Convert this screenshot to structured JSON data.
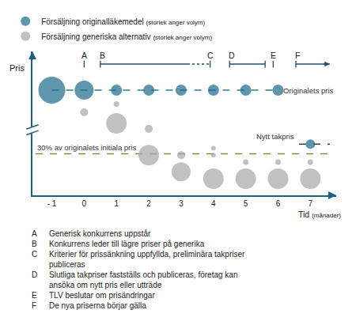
{
  "chart_data": {
    "type": "scatter",
    "marker": "bubble",
    "ylabel": "Pris",
    "xlabel": "Tid (månader)",
    "xlim": [
      -1.6,
      7.8
    ],
    "xticks": [
      {
        "value": -1,
        "label": "- 1"
      },
      0,
      1,
      2,
      3,
      4,
      5,
      6,
      7
    ],
    "ylim": [
      0,
      104
    ],
    "yticks": [],
    "tick_labels": "x",
    "grid": false,
    "legend": "top-left",
    "series": [
      {
        "name": "Försäljning originalläkemedel (storlek anger volym)",
        "color": "#1b6a87",
        "x": [
          -1,
          0,
          1,
          2,
          3,
          4,
          5,
          6,
          7
        ],
        "values": [
          76,
          76,
          76,
          76,
          76,
          76,
          76,
          76,
          37
        ],
        "sizes": [
          34,
          24,
          14,
          14,
          14,
          14,
          14,
          14,
          12
        ]
      },
      {
        "name": "Försäljning generiska alternativ (storlek anger volym)",
        "color": "#a6a6a6",
        "x": [
          0,
          1,
          1,
          2,
          2,
          3,
          3,
          4,
          4,
          4,
          5,
          5,
          6,
          6,
          7,
          7
        ],
        "values": [
          60,
          66,
          52,
          48,
          29,
          29,
          17,
          34,
          29,
          12,
          24,
          12,
          24,
          12,
          24,
          12
        ],
        "sizes": [
          10,
          7,
          26,
          10,
          26,
          10,
          24,
          6,
          6,
          26,
          7,
          26,
          7,
          26,
          7,
          26
        ]
      }
    ],
    "reference_lines": [
      {
        "label": "Originalets pris",
        "y": 76,
        "x": [
          -1,
          6
        ],
        "color": "#2a7c98",
        "line_style": "dashed"
      },
      {
        "label": "30% av originalets initiala pris",
        "y": 30,
        "x": [
          -1.5,
          7.7
        ],
        "color": "#8b8b2e",
        "line_style": "dashed"
      },
      {
        "label": "Nytt takpris",
        "y": 37,
        "x": [
          6.65,
          7.6
        ],
        "color": "#404040",
        "line_style": "dashed"
      }
    ],
    "timeline": [
      {
        "label": "A",
        "x": 0
      },
      {
        "label": "B",
        "start": 0.5,
        "end": 3.9,
        "dotted_from": 3.2
      },
      {
        "label": "C",
        "x": 3.9
      },
      {
        "label": "D",
        "start": 4.5,
        "end": 5.6
      },
      {
        "label": "E",
        "x": 5.85
      },
      {
        "label": "F",
        "start": 6.55,
        "end": 7.6,
        "line_style": "arrow"
      }
    ],
    "notes": [
      {
        "label": "A",
        "text": "Generisk konkurrens uppstår"
      },
      {
        "label": "B",
        "text": "Konkurrens leder till lägre priser på generika"
      },
      {
        "label": "C",
        "text": "Kriterier för prissänkning uppfyllda, preliminära takpriser publiceras"
      },
      {
        "label": "D",
        "text": "Slutliga takpriser fastställs och publiceras, företag kan ansöka om nytt pris eller utträde"
      },
      {
        "label": "E",
        "text": "TLV beslutar om prisändringar"
      },
      {
        "label": "F",
        "text": "De nya priserna börjar gälla"
      }
    ]
  }
}
